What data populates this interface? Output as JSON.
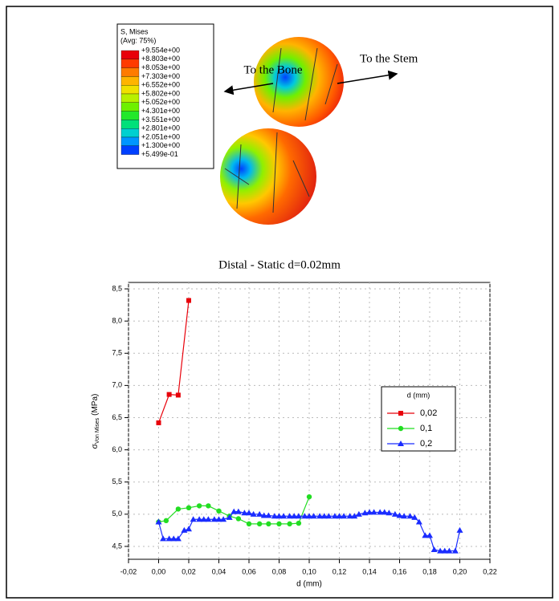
{
  "figure": {
    "legend_title": "S, Mises",
    "legend_subtitle": "(Avg: 75%)",
    "levels": [
      "+9.554e+00",
      "+8.803e+00",
      "+8.053e+00",
      "+7.303e+00",
      "+6.552e+00",
      "+5.802e+00",
      "+5.052e+00",
      "+4.301e+00",
      "+3.551e+00",
      "+2.801e+00",
      "+2.051e+00",
      "+1.300e+00",
      "+5.499e-01"
    ],
    "band_colors": [
      "#e8000a",
      "#ff3a00",
      "#ff7b00",
      "#ffb400",
      "#f0e000",
      "#b8f000",
      "#6ef000",
      "#22e82a",
      "#00e07a",
      "#00d0d0",
      "#0096ff",
      "#0040ff"
    ],
    "annotation_bone": "To the Bone",
    "annotation_stem": "To the Stem"
  },
  "caption": "Distal - Static d=0.02mm",
  "chart_data": {
    "type": "line",
    "xlabel": "d (mm)",
    "ylabel": {
      "symbol": "σ",
      "subscript": "Von Mises",
      "unit": "(MPa)"
    },
    "xlim": [
      -0.02,
      0.22
    ],
    "ylim": [
      4.3,
      8.6
    ],
    "xticks": [
      {
        "value": -0.02,
        "label": "-0,02"
      },
      {
        "value": 0,
        "label": "0,00"
      },
      {
        "value": 0.02,
        "label": "0,02"
      },
      {
        "value": 0.04,
        "label": "0,04"
      },
      {
        "value": 0.06,
        "label": "0,06"
      },
      {
        "value": 0.08,
        "label": "0,08"
      },
      {
        "value": 0.1,
        "label": "0,10"
      },
      {
        "value": 0.12,
        "label": "0,12"
      },
      {
        "value": 0.14,
        "label": "0,14"
      },
      {
        "value": 0.16,
        "label": "0,16"
      },
      {
        "value": 0.18,
        "label": "0,18"
      },
      {
        "value": 0.2,
        "label": "0,20"
      },
      {
        "value": 0.22,
        "label": "0,22"
      }
    ],
    "yticks": [
      {
        "value": 4.5,
        "label": "4,5"
      },
      {
        "value": 5,
        "label": "5,0"
      },
      {
        "value": 5.5,
        "label": "5,5"
      },
      {
        "value": 6,
        "label": "6,0"
      },
      {
        "value": 6.5,
        "label": "6,5"
      },
      {
        "value": 7,
        "label": "7,0"
      },
      {
        "value": 7.5,
        "label": "7,5"
      },
      {
        "value": 8,
        "label": "8,0"
      },
      {
        "value": 8.5,
        "label": "8,5"
      }
    ],
    "grid": true,
    "legend_title": "d (mm)",
    "legend_position": "right",
    "series": [
      {
        "name": "0,02",
        "color": "#e8000a",
        "marker": "square",
        "x": [
          0,
          0.007,
          0.013,
          0.02
        ],
        "values": [
          6.42,
          6.86,
          6.85,
          8.32
        ]
      },
      {
        "name": "0,1",
        "color": "#22dd22",
        "marker": "circle",
        "x": [
          0,
          0.005,
          0.013,
          0.02,
          0.027,
          0.033,
          0.04,
          0.047,
          0.053,
          0.06,
          0.067,
          0.073,
          0.08,
          0.087,
          0.093,
          0.1
        ],
        "values": [
          4.88,
          4.9,
          5.08,
          5.1,
          5.13,
          5.13,
          5.05,
          4.97,
          4.93,
          4.85,
          4.85,
          4.85,
          4.85,
          4.85,
          4.86,
          5.27
        ]
      },
      {
        "name": "0,2",
        "color": "#1a2cff",
        "marker": "triangle",
        "x": [
          0,
          0.003,
          0.007,
          0.01,
          0.013,
          0.017,
          0.02,
          0.023,
          0.027,
          0.03,
          0.033,
          0.037,
          0.04,
          0.043,
          0.047,
          0.05,
          0.053,
          0.057,
          0.06,
          0.063,
          0.067,
          0.07,
          0.073,
          0.077,
          0.08,
          0.083,
          0.087,
          0.09,
          0.093,
          0.097,
          0.1,
          0.103,
          0.107,
          0.11,
          0.113,
          0.117,
          0.12,
          0.123,
          0.127,
          0.13,
          0.133,
          0.137,
          0.14,
          0.143,
          0.147,
          0.15,
          0.153,
          0.157,
          0.16,
          0.163,
          0.167,
          0.17,
          0.173,
          0.177,
          0.18,
          0.183,
          0.187,
          0.19,
          0.193,
          0.197,
          0.2
        ],
        "values": [
          4.88,
          4.62,
          4.62,
          4.62,
          4.62,
          4.75,
          4.77,
          4.92,
          4.92,
          4.92,
          4.92,
          4.92,
          4.92,
          4.92,
          4.95,
          5.04,
          5.04,
          5.02,
          5.02,
          5.0,
          5.0,
          4.98,
          4.98,
          4.97,
          4.97,
          4.97,
          4.97,
          4.97,
          4.97,
          4.97,
          4.97,
          4.97,
          4.97,
          4.97,
          4.97,
          4.97,
          4.97,
          4.97,
          4.97,
          4.97,
          5.0,
          5.02,
          5.03,
          5.03,
          5.03,
          5.03,
          5.02,
          5.0,
          4.98,
          4.97,
          4.97,
          4.95,
          4.88,
          4.67,
          4.67,
          4.45,
          4.43,
          4.43,
          4.43,
          4.43,
          4.75
        ]
      }
    ]
  }
}
